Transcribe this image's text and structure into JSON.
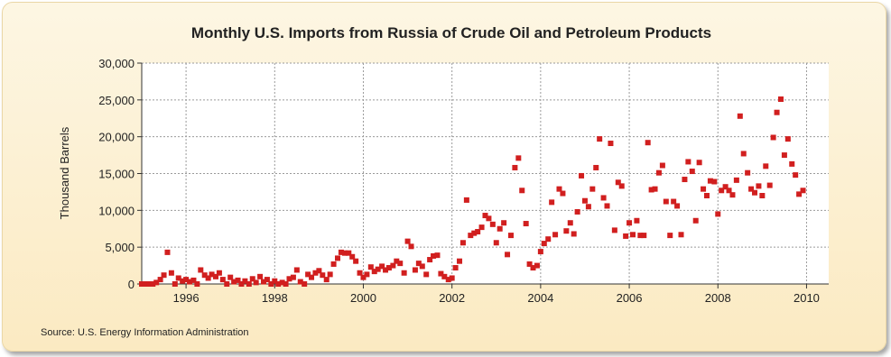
{
  "chart_data": {
    "type": "scatter",
    "title": "Monthly U.S. Imports from Russia of Crude Oil and Petroleum Products",
    "xlabel": "",
    "ylabel": "Thousand Barrels",
    "source": "Source: U.S. Energy Information Administration",
    "xlim": [
      1995,
      2010.5
    ],
    "ylim": [
      0,
      30000
    ],
    "x_ticks": [
      1996,
      1998,
      2000,
      2002,
      2004,
      2006,
      2008,
      2010
    ],
    "y_ticks": [
      0,
      5000,
      10000,
      15000,
      20000,
      25000,
      30000
    ],
    "y_tick_labels": [
      "0",
      "5,000",
      "10,000",
      "15,000",
      "20,000",
      "25,000",
      "30,000"
    ],
    "grid": true,
    "legend": "none",
    "marker_color": "#d11f1f",
    "frame_color": "#fbeed0",
    "series": [
      {
        "x": [
          1995.0,
          1995.08,
          1995.17,
          1995.25,
          1995.33,
          1995.42,
          1995.5,
          1995.58,
          1995.67,
          1995.75,
          1995.83,
          1995.92,
          1996.0,
          1996.08,
          1996.17,
          1996.25,
          1996.33,
          1996.42,
          1996.5,
          1996.58,
          1996.67,
          1996.75,
          1996.83,
          1996.92,
          1997.0,
          1997.08,
          1997.17,
          1997.25,
          1997.33,
          1997.42,
          1997.5,
          1997.58,
          1997.67,
          1997.75,
          1997.83,
          1997.92,
          1998.0,
          1998.08,
          1998.17,
          1998.25,
          1998.33,
          1998.42,
          1998.5,
          1998.58,
          1998.67,
          1998.75,
          1998.83,
          1998.92,
          1999.0,
          1999.08,
          1999.17,
          1999.25,
          1999.33,
          1999.42,
          1999.5,
          1999.58,
          1999.67,
          1999.75,
          1999.83,
          1999.92,
          2000.0,
          2000.08,
          2000.17,
          2000.25,
          2000.33,
          2000.42,
          2000.5,
          2000.58,
          2000.67,
          2000.75,
          2000.83,
          2000.92,
          2001.0,
          2001.08,
          2001.17,
          2001.25,
          2001.33,
          2001.42,
          2001.5,
          2001.58,
          2001.67,
          2001.75,
          2001.83,
          2001.92,
          2002.0,
          2002.08,
          2002.17,
          2002.25,
          2002.33,
          2002.42,
          2002.5,
          2002.58,
          2002.67,
          2002.75,
          2002.83,
          2002.92,
          2003.0,
          2003.08,
          2003.17,
          2003.25,
          2003.33,
          2003.42,
          2003.5,
          2003.58,
          2003.67,
          2003.75,
          2003.83,
          2003.92,
          2004.0,
          2004.08,
          2004.17,
          2004.25,
          2004.33,
          2004.42,
          2004.5,
          2004.58,
          2004.67,
          2004.75,
          2004.83,
          2004.92,
          2005.0,
          2005.08,
          2005.17,
          2005.25,
          2005.33,
          2005.42,
          2005.5,
          2005.58,
          2005.67,
          2005.75,
          2005.83,
          2005.92,
          2006.0,
          2006.08,
          2006.17,
          2006.25,
          2006.33,
          2006.42,
          2006.5,
          2006.58,
          2006.67,
          2006.75,
          2006.83,
          2006.92,
          2007.0,
          2007.08,
          2007.17,
          2007.25,
          2007.33,
          2007.42,
          2007.5,
          2007.58,
          2007.67,
          2007.75,
          2007.83,
          2007.92,
          2008.0,
          2008.08,
          2008.17,
          2008.25,
          2008.33,
          2008.42,
          2008.5,
          2008.58,
          2008.67,
          2008.75,
          2008.83,
          2008.92,
          2009.0,
          2009.08,
          2009.17,
          2009.25,
          2009.33,
          2009.42,
          2009.5,
          2009.58,
          2009.67,
          2009.75,
          2009.83,
          2009.92
        ],
        "y": [
          0,
          0,
          0,
          0,
          200,
          600,
          1200,
          4300,
          1500,
          0,
          800,
          400,
          600,
          300,
          500,
          0,
          1900,
          1200,
          800,
          1300,
          1000,
          1500,
          600,
          0,
          900,
          300,
          500,
          0,
          400,
          0,
          700,
          200,
          1000,
          300,
          600,
          0,
          400,
          0,
          200,
          0,
          700,
          900,
          1900,
          300,
          0,
          1300,
          900,
          1500,
          1800,
          1200,
          600,
          1300,
          2700,
          3500,
          4300,
          4200,
          4200,
          3700,
          3100,
          1500,
          900,
          1300,
          2300,
          1700,
          2000,
          2400,
          1900,
          2200,
          2500,
          3100,
          2800,
          1500,
          5800,
          5100,
          1900,
          2800,
          2400,
          1300,
          3300,
          3800,
          3900,
          1400,
          1000,
          600,
          800,
          2200,
          3100,
          5600,
          11400,
          6600,
          6900,
          7100,
          7700,
          9300,
          8900,
          8100,
          5600,
          7500,
          8300,
          4000,
          6600,
          15800,
          17100,
          12700,
          8200,
          2700,
          2200,
          2500,
          4400,
          5500,
          6100,
          11100,
          6700,
          12900,
          12300,
          7200,
          8300,
          6800,
          9800,
          14700,
          11300,
          10500,
          12900,
          15800,
          19700,
          11700,
          10600,
          19100,
          7300,
          13800,
          13300,
          6500,
          8300,
          6700,
          8600,
          6600,
          6600,
          19200,
          12800,
          12900,
          15100,
          16100,
          11200,
          6600,
          11200,
          10600,
          6700,
          14200,
          16600,
          15300,
          8600,
          16500,
          12900,
          12000,
          14000,
          13900,
          9500,
          12700,
          13200,
          12700,
          12100,
          14100,
          22800,
          17700,
          15100,
          12900,
          12400,
          13300,
          12000,
          16000,
          13400,
          19900,
          23300,
          25100,
          17500,
          19700,
          16300,
          14800,
          12200,
          12700
        ]
      }
    ]
  }
}
